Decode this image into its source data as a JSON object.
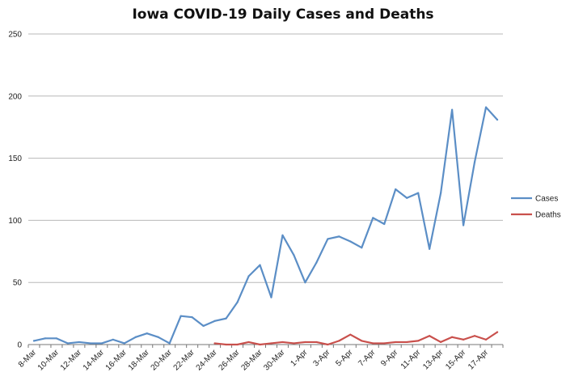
{
  "chart_data": {
    "type": "line",
    "title": "Iowa COVID-19 Daily Cases and Deaths",
    "xlabel": "",
    "ylabel": "",
    "ylim": [
      0,
      250
    ],
    "yticks": [
      0,
      50,
      100,
      150,
      200,
      250
    ],
    "grid": true,
    "legend": "right",
    "x": [
      "8-Mar",
      "9-Mar",
      "10-Mar",
      "11-Mar",
      "12-Mar",
      "13-Mar",
      "14-Mar",
      "15-Mar",
      "16-Mar",
      "17-Mar",
      "18-Mar",
      "19-Mar",
      "20-Mar",
      "21-Mar",
      "22-Mar",
      "23-Mar",
      "24-Mar",
      "25-Mar",
      "26-Mar",
      "27-Mar",
      "28-Mar",
      "29-Mar",
      "30-Mar",
      "31-Mar",
      "1-Apr",
      "2-Apr",
      "3-Apr",
      "4-Apr",
      "5-Apr",
      "6-Apr",
      "7-Apr",
      "8-Apr",
      "9-Apr",
      "10-Apr",
      "11-Apr",
      "12-Apr",
      "13-Apr",
      "14-Apr",
      "15-Apr",
      "16-Apr",
      "17-Apr",
      "18-Apr"
    ],
    "tick_labels": [
      "8-Mar",
      "10-Mar",
      "12-Mar",
      "14-Mar",
      "16-Mar",
      "18-Mar",
      "20-Mar",
      "22-Mar",
      "24-Mar",
      "26-Mar",
      "28-Mar",
      "30-Mar",
      "1-Apr",
      "3-Apr",
      "5-Apr",
      "7-Apr",
      "9-Apr",
      "11-Apr",
      "13-Apr",
      "15-Apr",
      "17-Apr"
    ],
    "series": [
      {
        "name": "Cases",
        "color": "#5b8ec6",
        "values": [
          3,
          5,
          5,
          1,
          2,
          1,
          1,
          4,
          1,
          6,
          9,
          6,
          1,
          23,
          22,
          15,
          19,
          21,
          34,
          55,
          64,
          38,
          88,
          72,
          50,
          66,
          85,
          87,
          83,
          78,
          102,
          97,
          125,
          118,
          122,
          77,
          122,
          189,
          96,
          147,
          191,
          181
        ]
      },
      {
        "name": "Deaths",
        "color": "#c9504c",
        "values": [
          null,
          null,
          null,
          null,
          null,
          null,
          null,
          null,
          null,
          null,
          null,
          null,
          null,
          null,
          null,
          null,
          1,
          0,
          0,
          2,
          0,
          1,
          2,
          1,
          2,
          2,
          0,
          3,
          8,
          3,
          1,
          1,
          2,
          2,
          3,
          7,
          2,
          6,
          4,
          7,
          4,
          10
        ]
      }
    ]
  }
}
